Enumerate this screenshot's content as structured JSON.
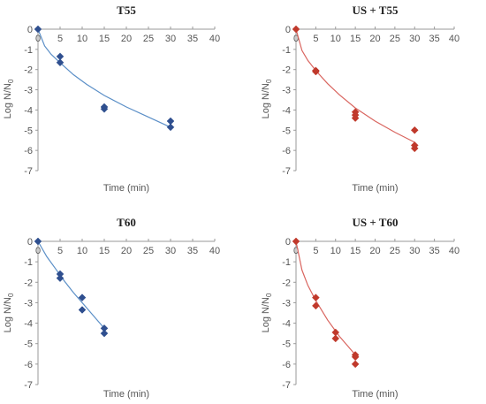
{
  "figure": {
    "ylabel_main": "Log N/N",
    "ylabel_sub": "0"
  },
  "chart_data": [
    {
      "type": "scatter",
      "title": "T55",
      "xlabel": "Time (min)",
      "ylabel": "Log N/N0",
      "xlim": [
        0,
        40
      ],
      "ylim": [
        -7,
        0
      ],
      "xticks": [
        0,
        5,
        10,
        15,
        20,
        25,
        30,
        35,
        40
      ],
      "yticks": [
        0,
        -1,
        -2,
        -3,
        -4,
        -5,
        -6,
        -7
      ],
      "marker_color": "#2f4f8f",
      "line_color": "#5b8fc7",
      "points": [
        [
          0,
          0
        ],
        [
          5,
          -1.35
        ],
        [
          5,
          -1.65
        ],
        [
          15,
          -3.85
        ],
        [
          15,
          -3.95
        ],
        [
          30,
          -4.55
        ],
        [
          30,
          -4.85
        ]
      ],
      "fit": [
        [
          0,
          0
        ],
        [
          1.5,
          -0.83
        ],
        [
          3,
          -1.25
        ],
        [
          5,
          -1.66
        ],
        [
          8,
          -2.25
        ],
        [
          11,
          -2.73
        ],
        [
          15,
          -3.28
        ],
        [
          20,
          -3.85
        ],
        [
          25,
          -4.35
        ],
        [
          30,
          -4.85
        ]
      ]
    },
    {
      "type": "scatter",
      "title": "US + T55",
      "xlabel": "Time (min)",
      "ylabel": "Log N/N0",
      "xlim": [
        0,
        40
      ],
      "ylim": [
        -7,
        0
      ],
      "xticks": [
        0,
        5,
        10,
        15,
        20,
        25,
        30,
        35,
        40
      ],
      "yticks": [
        0,
        -1,
        -2,
        -3,
        -4,
        -5,
        -6,
        -7
      ],
      "marker_color": "#c0392b",
      "line_color": "#d9655f",
      "points": [
        [
          0,
          0
        ],
        [
          5,
          -2.05
        ],
        [
          5,
          -2.1
        ],
        [
          15,
          -4.1
        ],
        [
          15,
          -4.25
        ],
        [
          15,
          -4.4
        ],
        [
          30,
          -5.0
        ],
        [
          30,
          -5.75
        ],
        [
          30,
          -5.9
        ]
      ],
      "fit": [
        [
          0,
          0
        ],
        [
          1.5,
          -1.05
        ],
        [
          3,
          -1.55
        ],
        [
          5,
          -2.05
        ],
        [
          8,
          -2.7
        ],
        [
          11,
          -3.25
        ],
        [
          15,
          -3.9
        ],
        [
          20,
          -4.55
        ],
        [
          25,
          -5.1
        ],
        [
          30,
          -5.6
        ]
      ]
    },
    {
      "type": "scatter",
      "title": "T60",
      "xlabel": "Time (min)",
      "ylabel": "Log N/N0",
      "xlim": [
        0,
        40
      ],
      "ylim": [
        -7,
        0
      ],
      "xticks": [
        0,
        5,
        10,
        15,
        20,
        25,
        30,
        35,
        40
      ],
      "yticks": [
        0,
        -1,
        -2,
        -3,
        -4,
        -5,
        -6,
        -7
      ],
      "marker_color": "#2f4f8f",
      "line_color": "#5b8fc7",
      "points": [
        [
          0,
          0
        ],
        [
          5,
          -1.6
        ],
        [
          5,
          -1.8
        ],
        [
          10,
          -2.75
        ],
        [
          10,
          -3.35
        ],
        [
          15,
          -4.25
        ],
        [
          15,
          -4.5
        ]
      ],
      "fit": [
        [
          0,
          0
        ],
        [
          2,
          -0.75
        ],
        [
          4,
          -1.35
        ],
        [
          6,
          -1.95
        ],
        [
          8,
          -2.5
        ],
        [
          10,
          -3.0
        ],
        [
          12,
          -3.5
        ],
        [
          15,
          -4.25
        ]
      ]
    },
    {
      "type": "scatter",
      "title": "US + T60",
      "xlabel": "Time (min)",
      "ylabel": "Log N/N0",
      "xlim": [
        0,
        40
      ],
      "ylim": [
        -7,
        0
      ],
      "xticks": [
        0,
        5,
        10,
        15,
        20,
        25,
        30,
        35,
        40
      ],
      "yticks": [
        0,
        -1,
        -2,
        -3,
        -4,
        -5,
        -6,
        -7
      ],
      "marker_color": "#c0392b",
      "line_color": "#d9655f",
      "points": [
        [
          0,
          0
        ],
        [
          5,
          -2.75
        ],
        [
          5,
          -3.15
        ],
        [
          10,
          -4.45
        ],
        [
          10,
          -4.75
        ],
        [
          15,
          -5.55
        ],
        [
          15,
          -5.65
        ],
        [
          15,
          -6.0
        ]
      ],
      "fit": [
        [
          0,
          0
        ],
        [
          1.5,
          -1.4
        ],
        [
          3,
          -2.15
        ],
        [
          5,
          -2.9
        ],
        [
          8,
          -3.85
        ],
        [
          11,
          -4.65
        ],
        [
          13,
          -5.1
        ],
        [
          15,
          -5.55
        ]
      ]
    }
  ]
}
